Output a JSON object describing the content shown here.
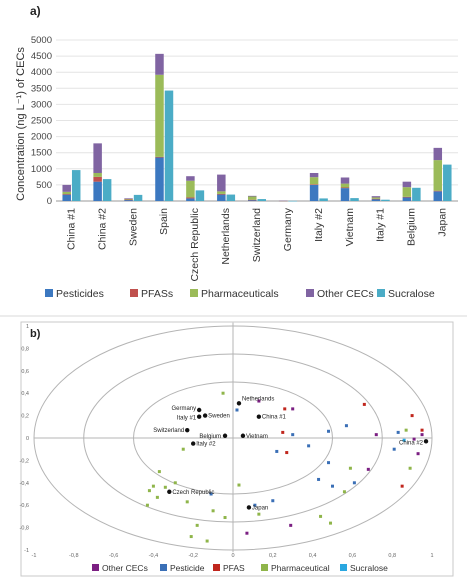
{
  "panels": {
    "a": "a)",
    "b": "b)"
  },
  "chart_data": [
    {
      "type": "bar",
      "panel_label": "a)",
      "ylabel": "Concentration (ng L⁻¹) of CECs",
      "ylim": [
        0,
        5000
      ],
      "yticks": [
        0,
        500,
        1000,
        1500,
        2000,
        2500,
        3000,
        3500,
        4000,
        4500,
        5000
      ],
      "categories": [
        "China #1",
        "China #2",
        "Sweden",
        "Spain",
        "Czech Republic",
        "Netherlands",
        "Switzerland",
        "Germany",
        "Italy #2",
        "Vietnam",
        "Italy #1",
        "Belgium",
        "Japan"
      ],
      "stacked_series": [
        {
          "name": "Pesticides",
          "color": "#3c78c0",
          "values": [
            200,
            600,
            30,
            1350,
            80,
            200,
            30,
            5,
            500,
            400,
            60,
            120,
            300
          ]
        },
        {
          "name": "PFASs",
          "color": "#c0504d",
          "values": [
            15,
            150,
            15,
            20,
            30,
            20,
            10,
            2,
            20,
            20,
            10,
            10,
            20
          ]
        },
        {
          "name": "Pharmaceuticals",
          "color": "#9bbb59",
          "values": [
            70,
            120,
            20,
            2550,
            520,
            80,
            100,
            3,
            220,
            120,
            40,
            300,
            950
          ]
        },
        {
          "name": "Other CECs",
          "color": "#8064a2",
          "values": [
            215,
            920,
            20,
            650,
            140,
            520,
            20,
            2,
            130,
            190,
            40,
            170,
            380
          ]
        }
      ],
      "side_series": {
        "name": "Sucralose",
        "color": "#4bacc6",
        "values": [
          960,
          680,
          190,
          3430,
          330,
          200,
          60,
          5,
          80,
          90,
          40,
          410,
          1130
        ]
      },
      "legend": {
        "position": "bottom",
        "items": [
          {
            "name": "Pesticides",
            "color": "#3c78c0"
          },
          {
            "name": "PFASs",
            "color": "#c0504d"
          },
          {
            "name": "Pharmaceuticals",
            "color": "#9bbb59"
          },
          {
            "name": "Other CECs",
            "color": "#8064a2"
          },
          {
            "name": "Sucralose",
            "color": "#4bacc6"
          }
        ]
      }
    },
    {
      "type": "scatter",
      "panel_label": "b)",
      "xlim": [
        -1,
        1
      ],
      "ylim": [
        -1,
        1
      ],
      "xticks": [
        -1,
        -0.8,
        -0.6,
        -0.4,
        -0.2,
        0,
        0.2,
        0.4,
        0.6,
        0.8,
        1
      ],
      "yticks": [
        -1,
        -0.8,
        -0.6,
        -0.4,
        -0.2,
        0,
        0.2,
        0.4,
        0.6,
        0.8,
        1
      ],
      "xtick_labels": [
        "-1",
        "-0,8",
        "-0,6",
        "-0,4",
        "-0,2",
        "0",
        "0,2",
        "0,4",
        "0,6",
        "0,8",
        "1"
      ],
      "ytick_labels": [
        "-1",
        "-0,8",
        "-0,6",
        "-0,4",
        "-0,2",
        "0",
        "0,2",
        "0,4",
        "0,6",
        "0,8",
        "1"
      ],
      "circles": [
        1.0,
        0.75,
        0.5
      ],
      "sites": [
        {
          "label": "Germany",
          "x": -0.17,
          "y": 0.25
        },
        {
          "label": "Italy #1",
          "x": -0.17,
          "y": 0.19
        },
        {
          "label": "Sweden",
          "x": -0.14,
          "y": 0.2
        },
        {
          "label": "Netherlands",
          "x": 0.03,
          "y": 0.31
        },
        {
          "label": "China #1",
          "x": 0.13,
          "y": 0.19
        },
        {
          "label": "Switzerland",
          "x": -0.23,
          "y": 0.07
        },
        {
          "label": "Belgium",
          "x": -0.04,
          "y": 0.02
        },
        {
          "label": "Vietnam",
          "x": 0.05,
          "y": 0.02
        },
        {
          "label": "Italy #2",
          "x": -0.2,
          "y": -0.05
        },
        {
          "label": "Czech Republic",
          "x": -0.32,
          "y": -0.48
        },
        {
          "label": "Japan",
          "x": 0.08,
          "y": -0.62
        },
        {
          "label": "China #2",
          "x": 0.97,
          "y": -0.03
        }
      ],
      "variables": [
        {
          "group": "Other CECs",
          "x": 0.3,
          "y": 0.26
        },
        {
          "group": "Other CECs",
          "x": 0.13,
          "y": 0.33
        },
        {
          "group": "Other CECs",
          "x": 0.93,
          "y": -0.14
        },
        {
          "group": "Other CECs",
          "x": 0.91,
          "y": -0.01
        },
        {
          "group": "Other CECs",
          "x": 0.29,
          "y": -0.78
        },
        {
          "group": "Other CECs",
          "x": 0.68,
          "y": -0.28
        },
        {
          "group": "Other CECs",
          "x": 0.07,
          "y": -0.85
        },
        {
          "group": "Other CECs",
          "x": 0.72,
          "y": 0.03
        },
        {
          "group": "Other CECs",
          "x": 0.95,
          "y": 0.03
        },
        {
          "group": "Pesticide",
          "x": 0.02,
          "y": 0.25
        },
        {
          "group": "Pesticide",
          "x": 0.48,
          "y": 0.06
        },
        {
          "group": "Pesticide",
          "x": 0.38,
          "y": -0.07
        },
        {
          "group": "Pesticide",
          "x": 0.22,
          "y": -0.12
        },
        {
          "group": "Pesticide",
          "x": 0.48,
          "y": -0.22
        },
        {
          "group": "Pesticide",
          "x": 0.61,
          "y": -0.4
        },
        {
          "group": "Pesticide",
          "x": 0.5,
          "y": -0.43
        },
        {
          "group": "Pesticide",
          "x": 0.2,
          "y": -0.56
        },
        {
          "group": "Pesticide",
          "x": 0.11,
          "y": -0.6
        },
        {
          "group": "Pesticide",
          "x": 0.43,
          "y": -0.37
        },
        {
          "group": "Pesticide",
          "x": 0.81,
          "y": -0.1
        },
        {
          "group": "Pesticide",
          "x": 0.83,
          "y": 0.05
        },
        {
          "group": "Pesticide",
          "x": 0.57,
          "y": 0.11
        },
        {
          "group": "Pesticide",
          "x": -0.11,
          "y": -0.5
        },
        {
          "group": "Pesticide",
          "x": 0.3,
          "y": 0.03
        },
        {
          "group": "PFAS",
          "x": 0.26,
          "y": 0.26
        },
        {
          "group": "PFAS",
          "x": 0.66,
          "y": 0.3
        },
        {
          "group": "PFAS",
          "x": 0.9,
          "y": 0.2
        },
        {
          "group": "PFAS",
          "x": 0.85,
          "y": -0.43
        },
        {
          "group": "PFAS",
          "x": 0.25,
          "y": 0.05
        },
        {
          "group": "PFAS",
          "x": 0.27,
          "y": -0.13
        },
        {
          "group": "PFAS",
          "x": 0.95,
          "y": 0.07
        },
        {
          "group": "Pharmaceutical",
          "x": -0.25,
          "y": -0.1
        },
        {
          "group": "Pharmaceutical",
          "x": -0.37,
          "y": -0.3
        },
        {
          "group": "Pharmaceutical",
          "x": -0.4,
          "y": -0.43
        },
        {
          "group": "Pharmaceutical",
          "x": -0.42,
          "y": -0.47
        },
        {
          "group": "Pharmaceutical",
          "x": -0.38,
          "y": -0.53
        },
        {
          "group": "Pharmaceutical",
          "x": -0.34,
          "y": -0.44
        },
        {
          "group": "Pharmaceutical",
          "x": -0.29,
          "y": -0.4
        },
        {
          "group": "Pharmaceutical",
          "x": -0.23,
          "y": -0.57
        },
        {
          "group": "Pharmaceutical",
          "x": -0.1,
          "y": -0.65
        },
        {
          "group": "Pharmaceutical",
          "x": -0.04,
          "y": -0.71
        },
        {
          "group": "Pharmaceutical",
          "x": -0.18,
          "y": -0.78
        },
        {
          "group": "Pharmaceutical",
          "x": -0.13,
          "y": -0.92
        },
        {
          "group": "Pharmaceutical",
          "x": -0.21,
          "y": -0.88
        },
        {
          "group": "Pharmaceutical",
          "x": 0.03,
          "y": -0.42
        },
        {
          "group": "Pharmaceutical",
          "x": 0.13,
          "y": -0.68
        },
        {
          "group": "Pharmaceutical",
          "x": 0.44,
          "y": -0.7
        },
        {
          "group": "Pharmaceutical",
          "x": 0.56,
          "y": -0.48
        },
        {
          "group": "Pharmaceutical",
          "x": 0.59,
          "y": -0.27
        },
        {
          "group": "Pharmaceutical",
          "x": 0.89,
          "y": -0.27
        },
        {
          "group": "Pharmaceutical",
          "x": 0.87,
          "y": 0.07
        },
        {
          "group": "Pharmaceutical",
          "x": 0.49,
          "y": -0.76
        },
        {
          "group": "Pharmaceutical",
          "x": -0.43,
          "y": -0.6
        },
        {
          "group": "Pharmaceutical",
          "x": -0.05,
          "y": 0.4
        },
        {
          "group": "Sucralose",
          "x": 0.86,
          "y": -0.02
        }
      ],
      "legend": {
        "position": "bottom",
        "items": [
          {
            "name": "Other CECs",
            "color": "#7b1f82"
          },
          {
            "name": "Pesticide",
            "color": "#3a6fb6"
          },
          {
            "name": "PFAS",
            "color": "#c0261d"
          },
          {
            "name": "Pharmaceutical",
            "color": "#8fb54a"
          },
          {
            "name": "Sucralose",
            "color": "#2aa7e0"
          }
        ]
      }
    }
  ]
}
